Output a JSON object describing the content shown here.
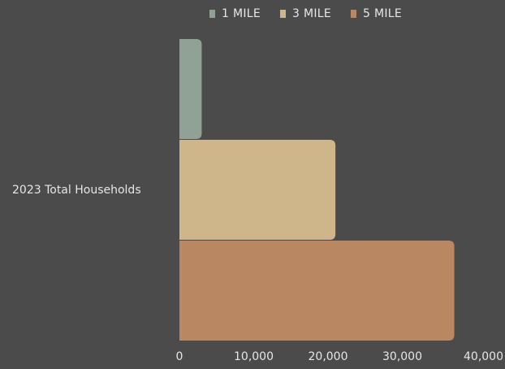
{
  "chart_data": {
    "type": "bar",
    "orientation": "horizontal",
    "categories": [
      "2023 Total Households"
    ],
    "series": [
      {
        "name": "1 MILE",
        "color": "#8fa295",
        "values": [
          3000
        ]
      },
      {
        "name": "3 MILE",
        "color": "#cfb68a",
        "values": [
          21000
        ]
      },
      {
        "name": "5 MILE",
        "color": "#b98862",
        "values": [
          37000
        ]
      }
    ],
    "xlim": [
      0,
      40000
    ],
    "x_ticks": [
      "0",
      "10,000",
      "20,000",
      "30,000",
      "40,000"
    ],
    "legend_position": "top",
    "grid": false
  }
}
